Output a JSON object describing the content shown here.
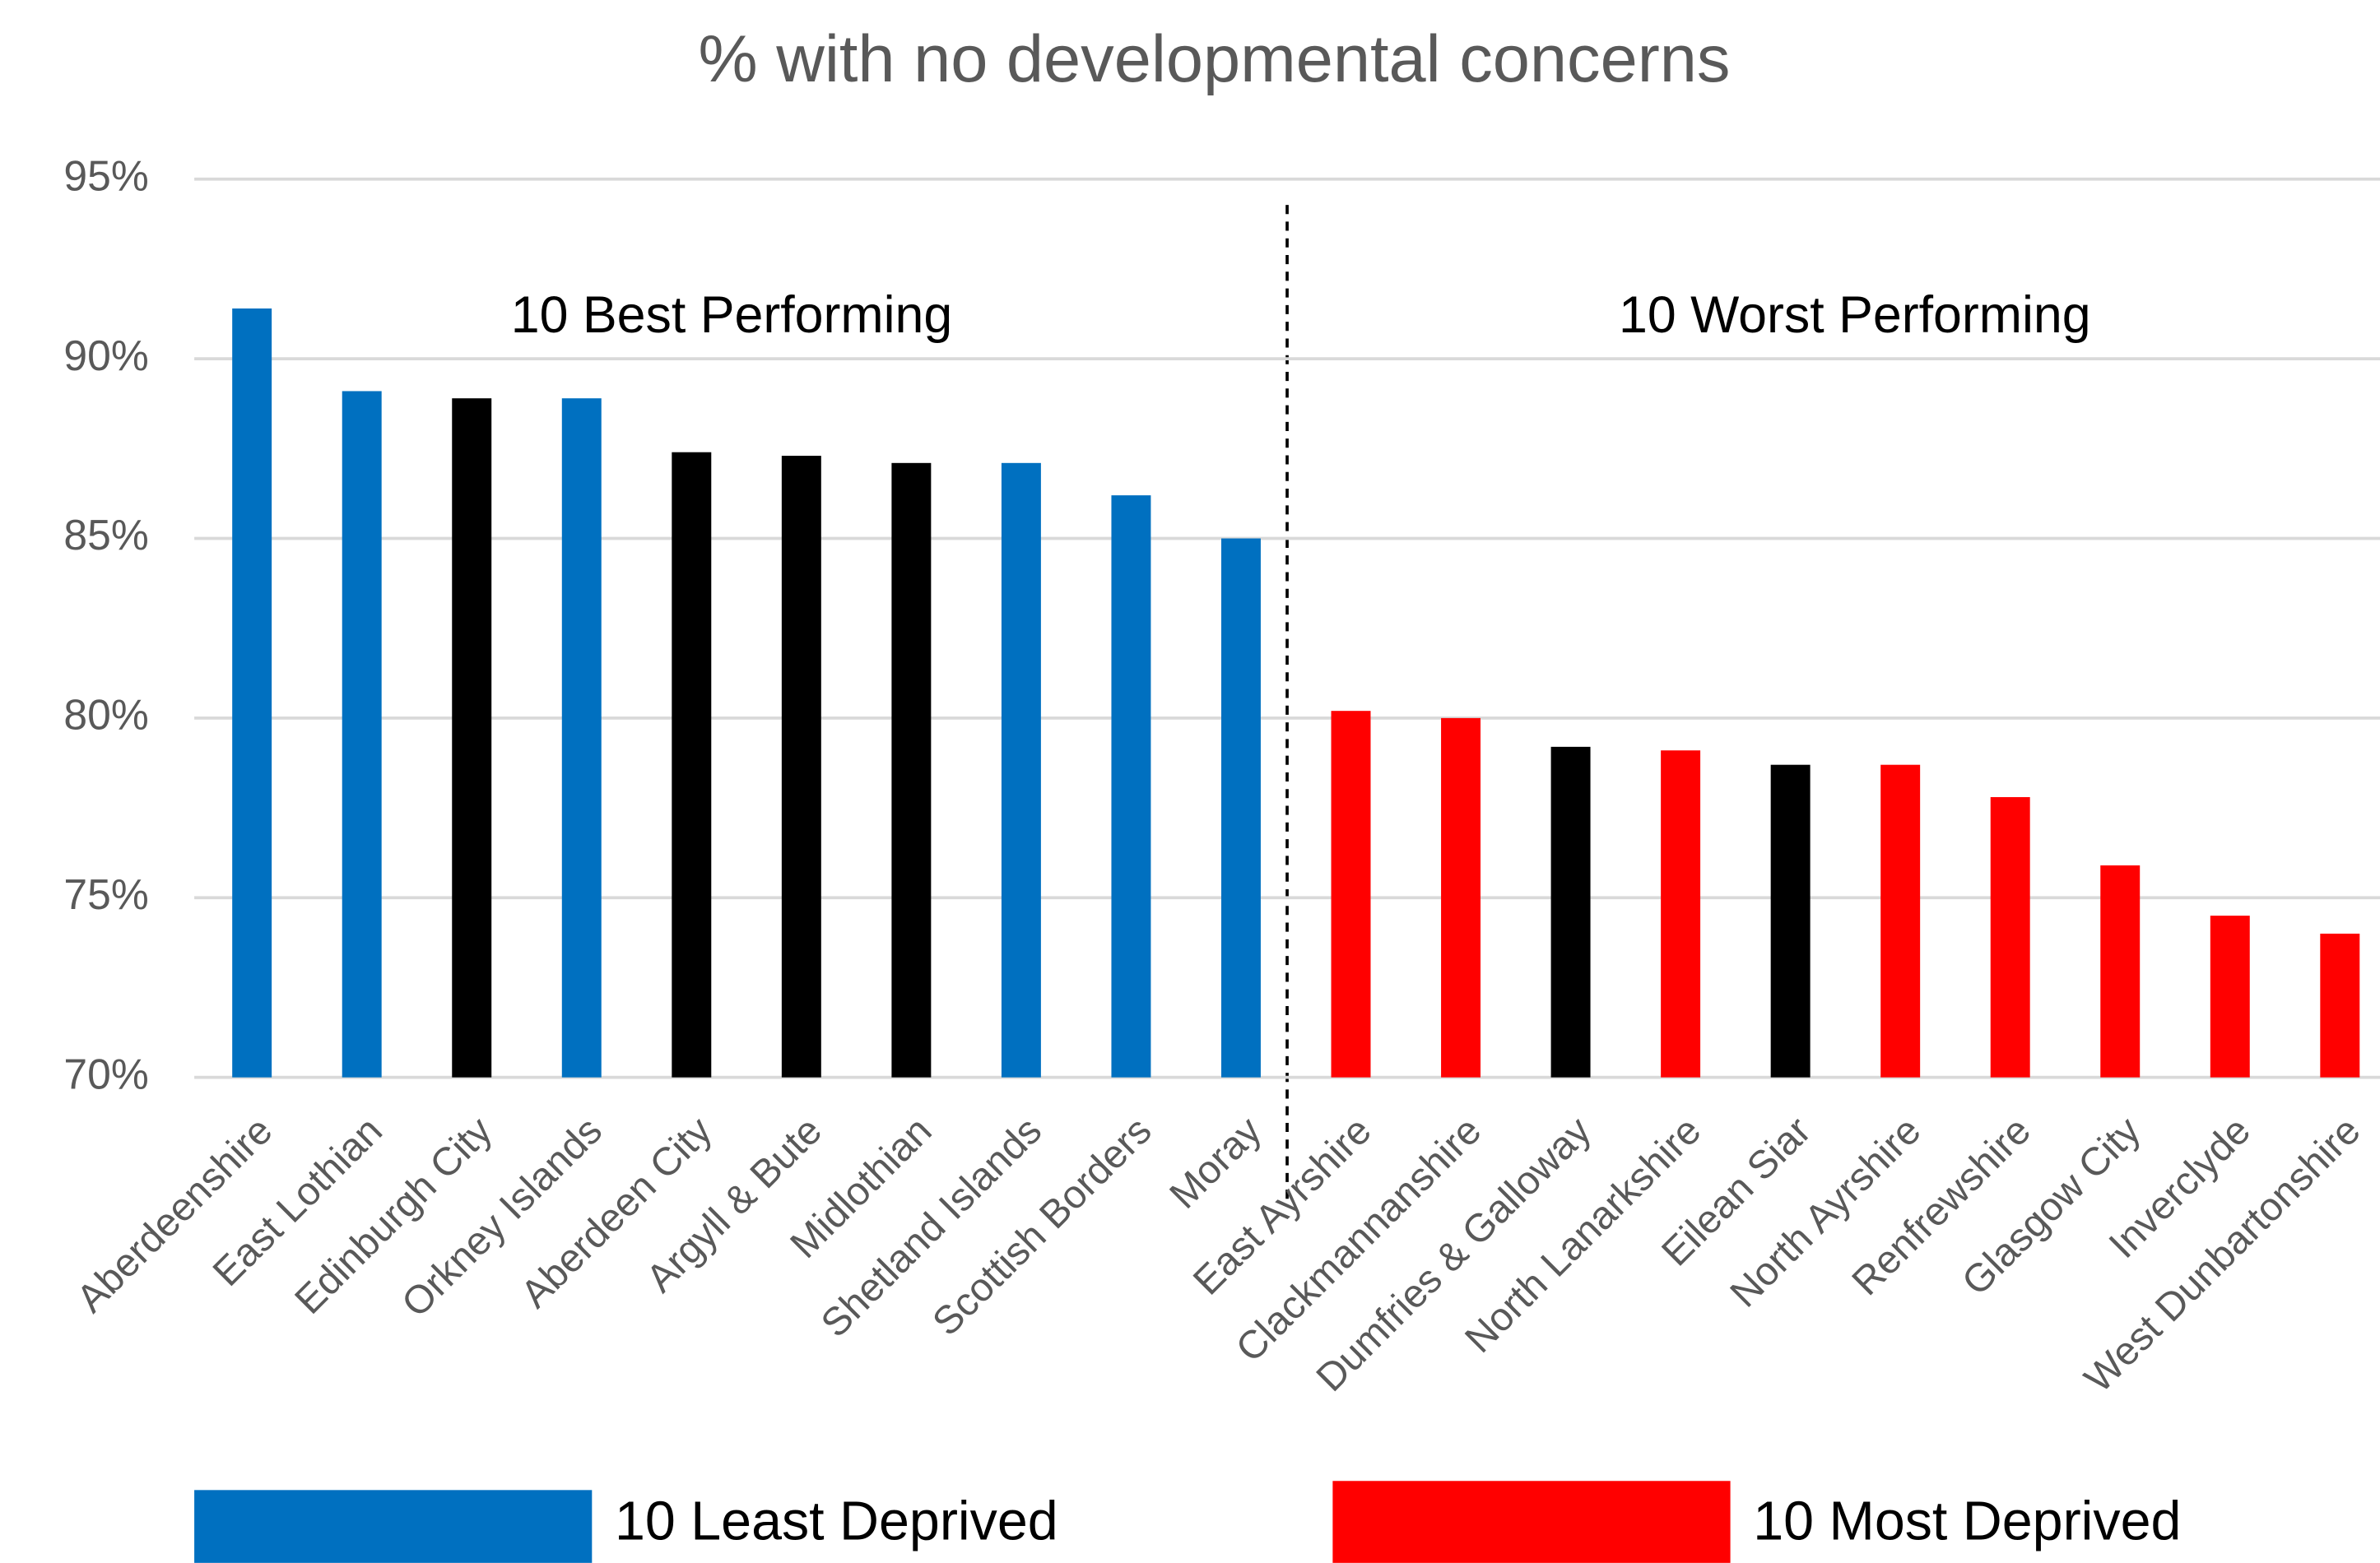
{
  "chart_data": {
    "type": "bar",
    "title": "% with no developmental concerns",
    "categories": [
      "Aberdeenshire",
      "East Lothian",
      "Edinburgh City",
      "Orkney Islands",
      "Aberdeen City",
      "Argyll & Bute",
      "Midlothian",
      "Shetland Islands",
      "Scottish Borders",
      "Moray",
      "East Ayrshire",
      "Clackmannanshire",
      "Dumfries & Galloway",
      "North Lanarkshire",
      "Eilean Siar",
      "North Ayrshire",
      "Renfrewshire",
      "Glasgow City",
      "Inverclyde",
      "West Dunbartonshire"
    ],
    "values": [
      91.4,
      89.1,
      88.9,
      88.9,
      87.4,
      87.3,
      87.1,
      87.1,
      86.2,
      85.0,
      80.2,
      80.0,
      79.2,
      79.1,
      78.7,
      78.7,
      77.8,
      75.9,
      74.5,
      74.0
    ],
    "colors": [
      "#0070c0",
      "#0070c0",
      "#000000",
      "#0070c0",
      "#000000",
      "#000000",
      "#000000",
      "#0070c0",
      "#0070c0",
      "#0070c0",
      "#ff0000",
      "#ff0000",
      "#000000",
      "#ff0000",
      "#000000",
      "#ff0000",
      "#ff0000",
      "#ff0000",
      "#ff0000",
      "#ff0000"
    ],
    "ylim": [
      70,
      95
    ],
    "yticks": [
      {
        "value": 70,
        "label": "70%"
      },
      {
        "value": 75,
        "label": "75%"
      },
      {
        "value": 80,
        "label": "80%"
      },
      {
        "value": 85,
        "label": "85%"
      },
      {
        "value": 90,
        "label": "90%"
      },
      {
        "value": 95,
        "label": "95%"
      }
    ],
    "grid": true,
    "annotations": [
      "10 Best Performing",
      "10 Worst Performing"
    ],
    "legend": [
      {
        "label": "10 Least Deprived",
        "color": "#0070c0"
      },
      {
        "label": "10 Most Deprived",
        "color": "#ff0000"
      }
    ]
  }
}
